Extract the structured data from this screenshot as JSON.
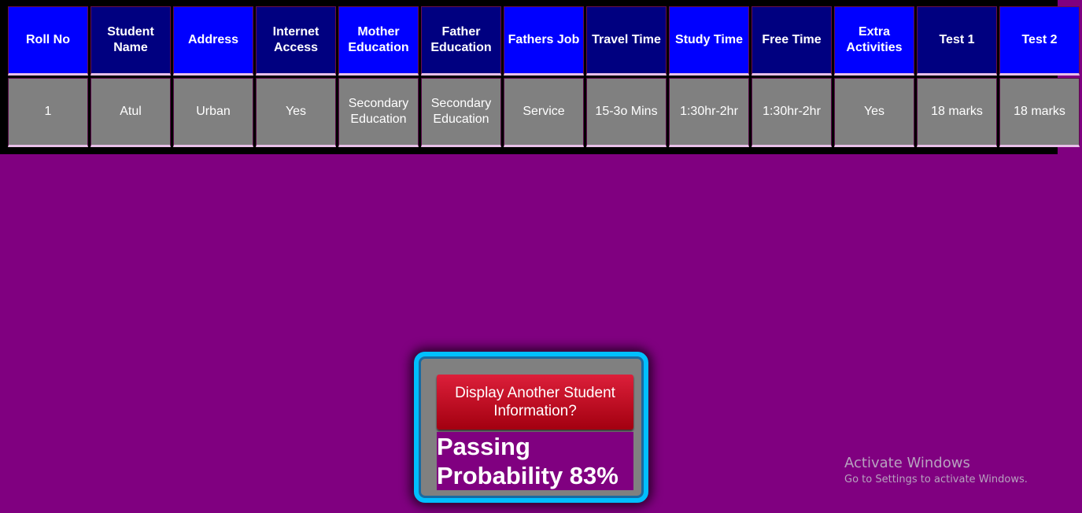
{
  "table": {
    "headers": [
      "Roll No",
      "Student Name",
      "Address",
      "Internet Access",
      "Mother Education",
      "Father Education",
      "Fathers Job",
      "Travel Time",
      "Study Time",
      "Free Time",
      "Extra Activities",
      "Test 1",
      "Test 2"
    ],
    "rows": [
      [
        "1",
        "Atul",
        "Urban",
        "Yes",
        "Secondary Education",
        "Secondary Education",
        "Service",
        "15-3o Mins",
        "1:30hr-2hr",
        "1:30hr-2hr",
        "Yes",
        "18 marks",
        "18 marks"
      ]
    ]
  },
  "panel": {
    "button_label": "Display Another Student Information?",
    "result_text": "Passing Probability 83%"
  },
  "watermark": {
    "title": "Activate Windows",
    "subtitle": "Go to Settings to activate Windows."
  },
  "colors": {
    "page_background": "#800080",
    "header_bright": "#0000ff",
    "header_dark": "#000080",
    "cell_background": "#808080",
    "button_red": "#c0101f",
    "panel_border": "#00bfff"
  }
}
